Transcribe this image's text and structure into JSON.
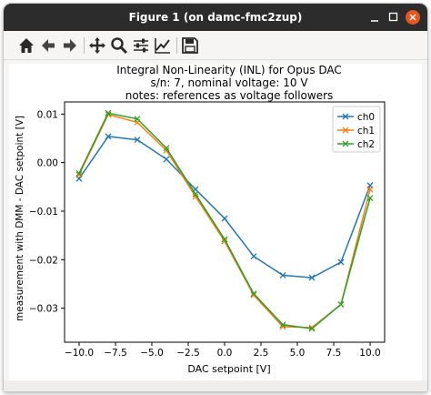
{
  "window": {
    "title": "Figure 1 (on damc-fmc2zup)"
  },
  "toolbar": {
    "icons": [
      "home-icon",
      "back-arrow-icon",
      "forward-arrow-icon",
      "pan-icon",
      "zoom-icon",
      "configure-subplots-icon",
      "edit-axis-icon",
      "save-icon"
    ]
  },
  "chart_data": {
    "type": "line",
    "title": "Integral Non-Linearity (INL) for Opus DAC",
    "subtitle_lines": [
      "s/n: 7, nominal voltage: 10 V",
      "notes: references as voltage followers"
    ],
    "xlabel": "DAC setpoint [V]",
    "ylabel": "measurement with DMM - DAC setpoint [V]",
    "xlim": [
      -11,
      11
    ],
    "ylim": [
      -0.037,
      0.0125
    ],
    "x": [
      -10,
      -8,
      -6,
      -4,
      -2,
      0,
      2,
      4,
      6,
      8,
      10
    ],
    "xticks": [
      -10.0,
      -7.5,
      -5.0,
      -2.5,
      0.0,
      2.5,
      5.0,
      7.5,
      10.0
    ],
    "xtick_labels": [
      "−10.0",
      "−7.5",
      "−5.0",
      "−2.5",
      "0.0",
      "2.5",
      "5.0",
      "7.5",
      "10.0"
    ],
    "yticks": [
      0.01,
      0.0,
      -0.01,
      -0.02,
      -0.03
    ],
    "ytick_labels": [
      "0.01",
      "0.00",
      "−0.01",
      "−0.02",
      "−0.03"
    ],
    "grid": false,
    "legend_position": "top-right",
    "marker": "x",
    "series": [
      {
        "name": "ch0",
        "color": "#1f77b4",
        "values": [
          -0.0033,
          0.0054,
          0.0047,
          0.0007,
          -0.0055,
          -0.0115,
          -0.0193,
          -0.0232,
          -0.0237,
          -0.0205,
          -0.0047
        ]
      },
      {
        "name": "ch1",
        "color": "#ff7f0e",
        "values": [
          -0.0025,
          0.0099,
          0.0083,
          0.0025,
          -0.007,
          -0.0162,
          -0.0273,
          -0.0338,
          -0.034,
          -0.0292,
          -0.0055
        ]
      },
      {
        "name": "ch2",
        "color": "#2ca02c",
        "values": [
          -0.0022,
          0.0102,
          0.009,
          0.003,
          -0.0065,
          -0.0158,
          -0.027,
          -0.0334,
          -0.0342,
          -0.0292,
          -0.0073
        ]
      }
    ]
  }
}
